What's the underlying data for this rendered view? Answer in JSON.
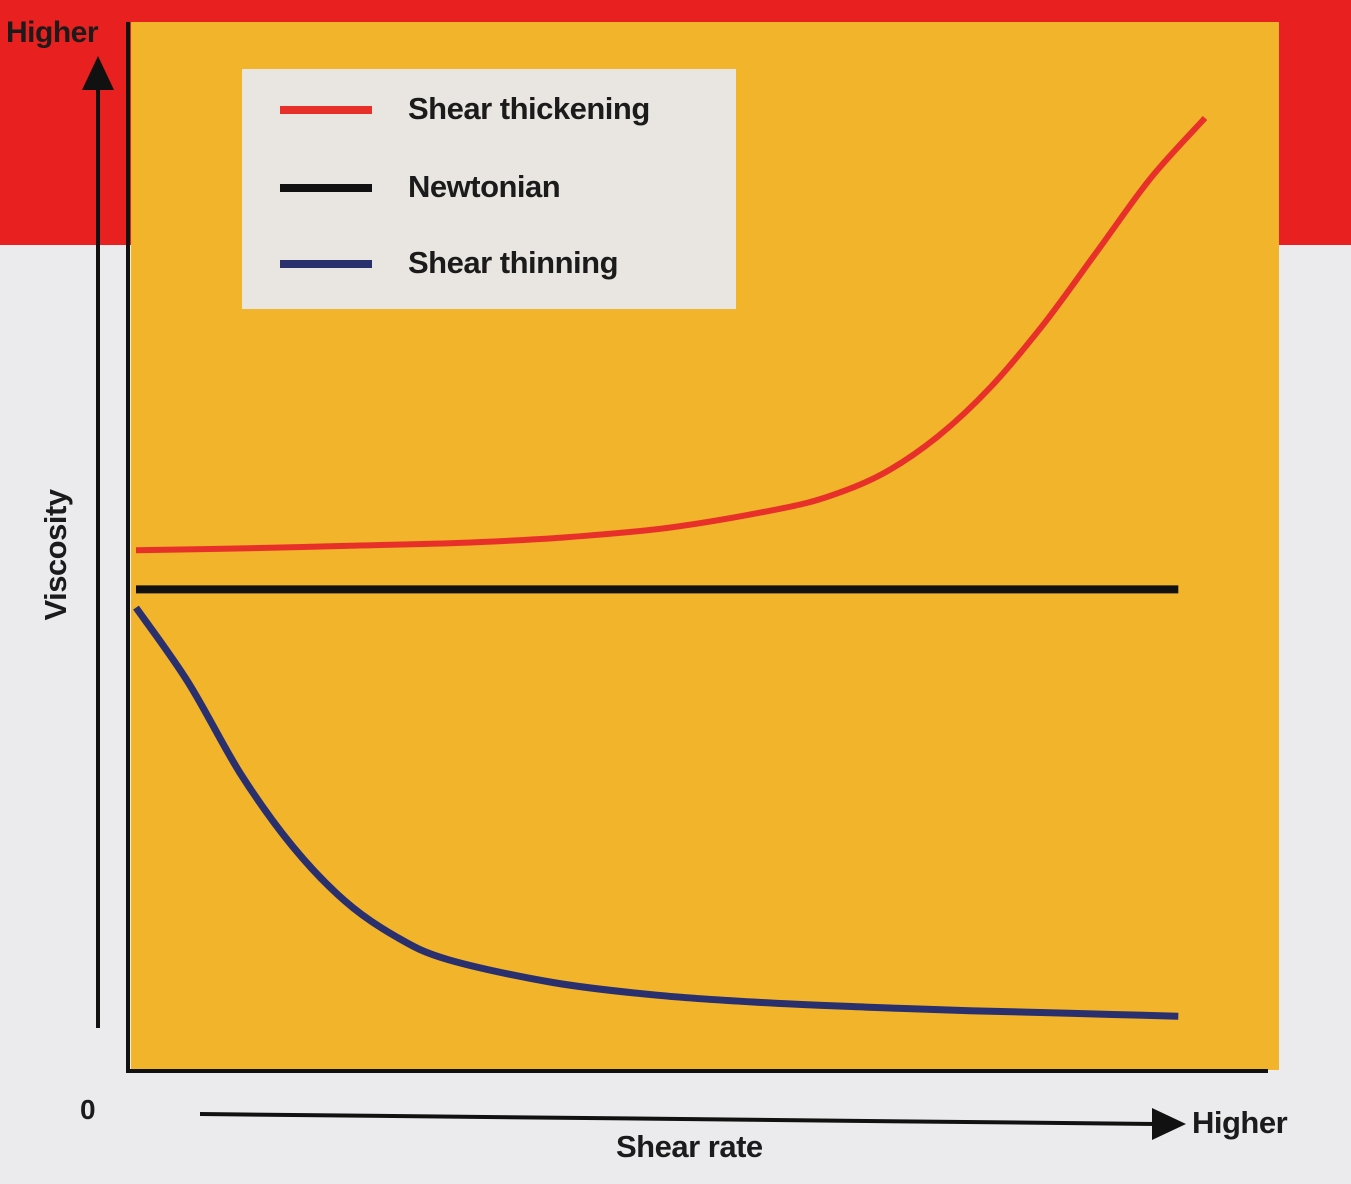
{
  "chart_data": {
    "type": "line",
    "title": "",
    "xlabel": "Shear rate",
    "ylabel": "Viscosity",
    "x_origin_label": "0",
    "x_axis_end_label": "Higher",
    "y_axis_end_label": "Higher",
    "xlim": [
      0,
      100
    ],
    "ylim": [
      0,
      100
    ],
    "grid": false,
    "legend_position": "top-left",
    "series": [
      {
        "name": "Shear thickening",
        "color": "#e8302a",
        "x": [
          0,
          10,
          20,
          30,
          40,
          50,
          60,
          65,
          70,
          75,
          80,
          85,
          90,
          95,
          100
        ],
        "y": [
          52.5,
          52.7,
          53.0,
          53.3,
          53.9,
          55.0,
          57.0,
          58.5,
          61.0,
          65.0,
          70.5,
          77.5,
          85.5,
          93.5,
          100.0
        ]
      },
      {
        "name": "Newtonian",
        "color": "#111111",
        "x": [
          0,
          100
        ],
        "y": [
          48.2,
          48.2
        ]
      },
      {
        "name": "Shear thinning",
        "color": "#2a2f6e",
        "x": [
          0,
          5,
          10,
          15,
          20,
          25,
          30,
          40,
          50,
          60,
          70,
          80,
          90,
          100
        ],
        "y": [
          46.2,
          38.0,
          28.0,
          20.0,
          14.0,
          10.0,
          7.5,
          5.0,
          3.6,
          2.8,
          2.3,
          1.9,
          1.6,
          1.3
        ]
      }
    ]
  }
}
